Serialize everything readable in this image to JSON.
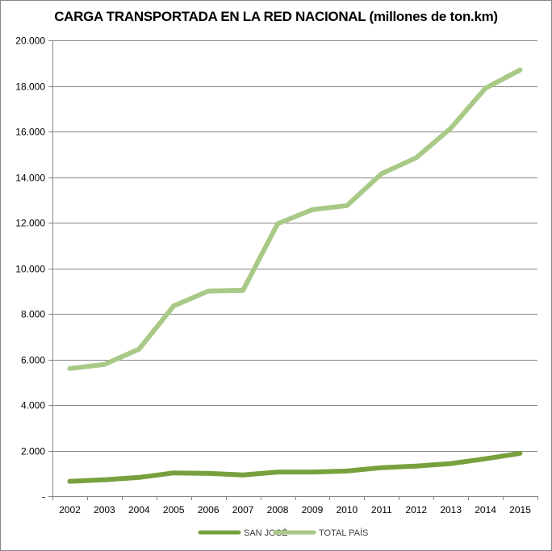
{
  "chart_data": {
    "type": "line",
    "title": "CARGA TRANSPORTADA EN LA RED NACIONAL (millones de ton.km)",
    "xlabel": "",
    "ylabel": "",
    "categories": [
      "2002",
      "2003",
      "2004",
      "2005",
      "2006",
      "2007",
      "2008",
      "2009",
      "2010",
      "2011",
      "2012",
      "2013",
      "2014",
      "2015"
    ],
    "ylim": [
      0,
      20000
    ],
    "yticks": [
      0,
      2000,
      4000,
      6000,
      8000,
      10000,
      12000,
      14000,
      16000,
      18000,
      20000
    ],
    "ytick_labels": [
      "-",
      "2.000",
      "4.000",
      "6.000",
      "8.000",
      "10.000",
      "12.000",
      "14.000",
      "16.000",
      "18.000",
      "20.000"
    ],
    "grid": true,
    "legend_position": "bottom",
    "series": [
      {
        "name": "SAN JOSÉ",
        "color": "#77a13e",
        "values": [
          650,
          720,
          820,
          1020,
          1000,
          930,
          1060,
          1060,
          1100,
          1250,
          1320,
          1430,
          1640,
          1880
        ]
      },
      {
        "name": "TOTAL PAÍS",
        "color": "#a9c986",
        "values": [
          5600,
          5780,
          6450,
          8350,
          9000,
          9030,
          11950,
          12570,
          12750,
          14150,
          14850,
          16150,
          17900,
          18700
        ]
      }
    ]
  }
}
